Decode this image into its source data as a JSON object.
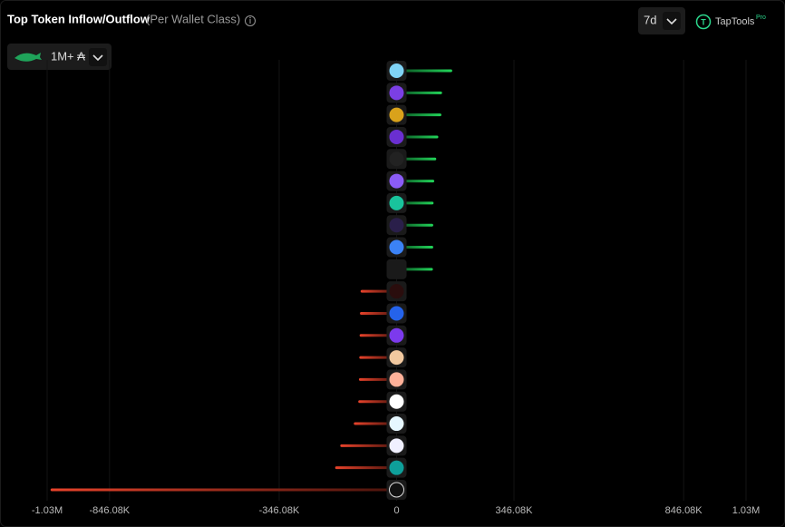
{
  "chart_data": {
    "type": "hbar",
    "title": "Top Token Inflow/Outflow",
    "subtitle": "(Per Wallet Class)",
    "timeframe": "7d",
    "wallet_class": "1M+ ₳",
    "brand": "TapTools",
    "brand_badge": "Pro",
    "categories": [
      null,
      null,
      null,
      null,
      null,
      null,
      null,
      null,
      null,
      null,
      null,
      null,
      null,
      null,
      null,
      null,
      null,
      null,
      null,
      null
    ],
    "values": [
      164000,
      134000,
      132000,
      123000,
      117000,
      111000,
      109000,
      108000,
      108000,
      107000,
      -106000,
      -108000,
      -109000,
      -110000,
      -111000,
      -113000,
      -126000,
      -166000,
      -181000,
      -1020000
    ],
    "color_positive": "#22d65a",
    "color_negative": "#e8432b",
    "xlim": [
      -1030000,
      1030000
    ],
    "xticks": [
      {
        "value": -1030000,
        "label": "-1.03M"
      },
      {
        "value": -846080,
        "label": "-846.08K"
      },
      {
        "value": -346080,
        "label": "-346.08K"
      },
      0,
      {
        "value": 346080,
        "label": "346.08K"
      },
      {
        "value": 846080,
        "label": "846.08K"
      },
      {
        "value": 1030000,
        "label": "1.03M"
      }
    ],
    "grid": true
  }
}
